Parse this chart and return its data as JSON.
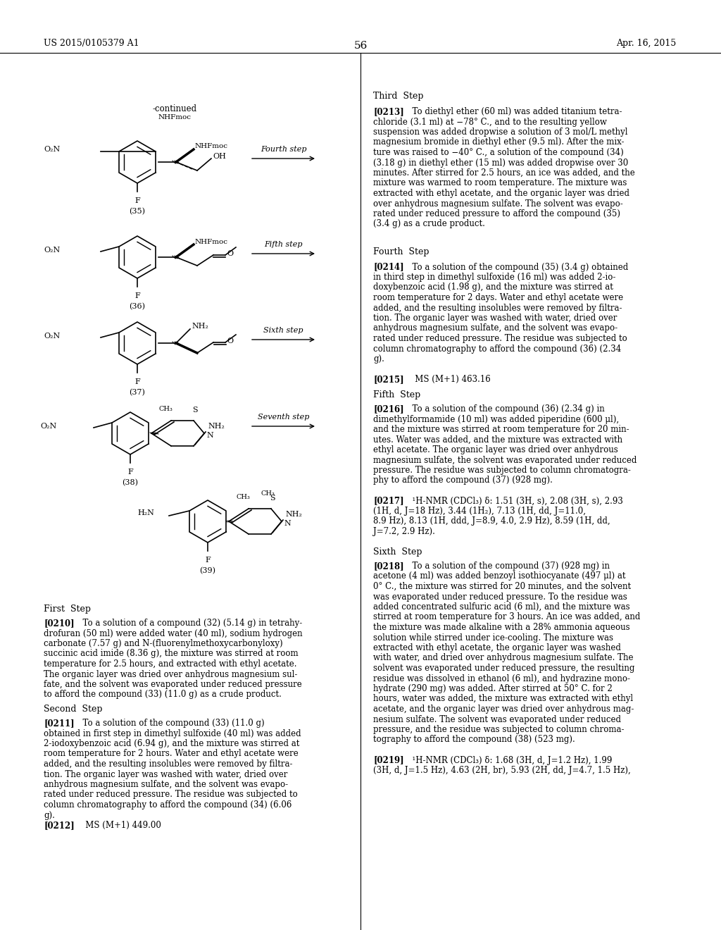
{
  "header_left": "US 2015/0105379 A1",
  "header_right": "Apr. 16, 2015",
  "page_number": "56",
  "background_color": "#ffffff"
}
